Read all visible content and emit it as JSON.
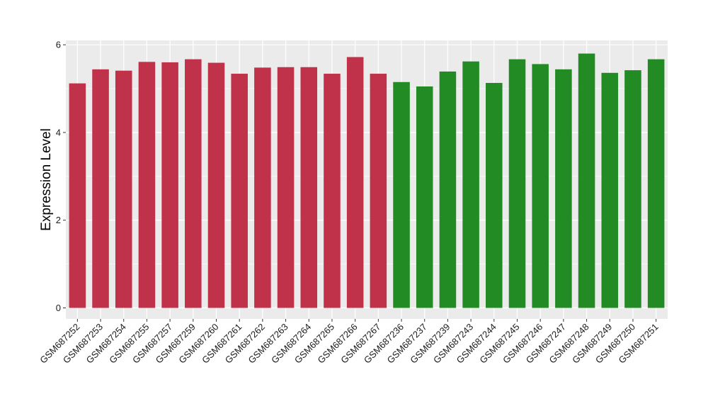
{
  "chart_data": {
    "type": "bar",
    "title": "",
    "xlabel": "",
    "ylabel": "Expression Level",
    "ylim": [
      -0.25,
      6.1
    ],
    "yticks": [
      0,
      2,
      4,
      6
    ],
    "grid": true,
    "colors": {
      "background": "#ebebeb",
      "gridline": "#ffffff",
      "group_red": "#c0314a",
      "group_green": "#238b23"
    },
    "categories": [
      "GSM687252",
      "GSM687253",
      "GSM687254",
      "GSM687255",
      "GSM687257",
      "GSM687259",
      "GSM687260",
      "GSM687261",
      "GSM687262",
      "GSM687263",
      "GSM687264",
      "GSM687265",
      "GSM687266",
      "GSM687267",
      "GSM687236",
      "GSM687237",
      "GSM687239",
      "GSM687243",
      "GSM687244",
      "GSM687245",
      "GSM687246",
      "GSM687247",
      "GSM687248",
      "GSM687249",
      "GSM687250",
      "GSM687251"
    ],
    "values": [
      5.12,
      5.44,
      5.41,
      5.61,
      5.6,
      5.67,
      5.59,
      5.34,
      5.48,
      5.49,
      5.49,
      5.34,
      5.72,
      5.34,
      5.15,
      5.05,
      5.39,
      5.62,
      5.13,
      5.67,
      5.56,
      5.44,
      5.8,
      5.36,
      5.42,
      5.67
    ],
    "bar_colors": [
      "group_red",
      "group_red",
      "group_red",
      "group_red",
      "group_red",
      "group_red",
      "group_red",
      "group_red",
      "group_red",
      "group_red",
      "group_red",
      "group_red",
      "group_red",
      "group_red",
      "group_green",
      "group_green",
      "group_green",
      "group_green",
      "group_green",
      "group_green",
      "group_green",
      "group_green",
      "group_green",
      "group_green",
      "group_green",
      "group_green"
    ]
  }
}
